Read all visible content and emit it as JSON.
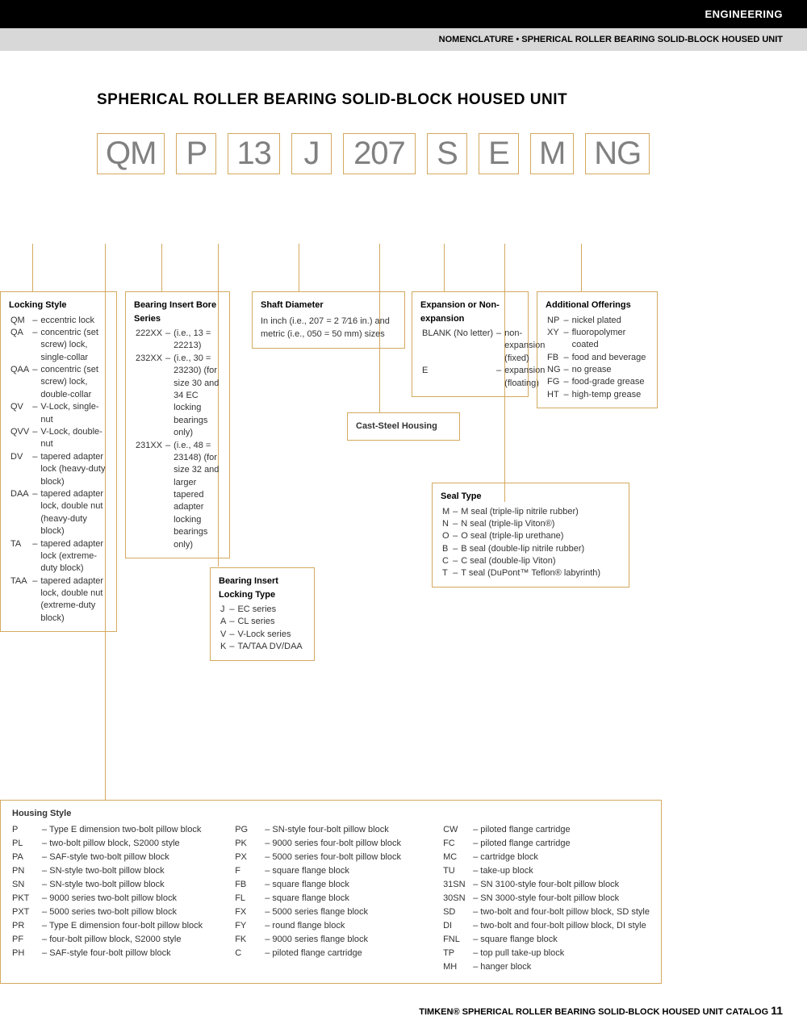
{
  "header": {
    "category": "ENGINEERING",
    "breadcrumb": "NOMENCLATURE • SPHERICAL ROLLER BEARING SOLID-BLOCK HOUSED UNIT"
  },
  "title": "SPHERICAL ROLLER BEARING SOLID-BLOCK HOUSED UNIT",
  "code_parts": [
    "QM",
    "P",
    "13",
    "J",
    "207",
    "S",
    "E",
    "M",
    "NG"
  ],
  "locking_style": {
    "title": "Locking Style",
    "rows": [
      [
        "QM",
        "eccentric lock"
      ],
      [
        "QA",
        "concentric (set screw) lock, single-collar"
      ],
      [
        "QAA",
        "concentric (set screw) lock, double-collar"
      ],
      [
        "QV",
        "V-Lock, single-nut"
      ],
      [
        "QVV",
        "V-Lock, double-nut"
      ],
      [
        "DV",
        "tapered adapter lock (heavy-duty block)"
      ],
      [
        "DAA",
        "tapered adapter lock, double nut (heavy-duty block)"
      ],
      [
        "TA",
        "tapered adapter lock (extreme-duty block)"
      ],
      [
        "TAA",
        "tapered adapter lock, double nut (extreme-duty block)"
      ]
    ]
  },
  "bore_series": {
    "title": "Bearing Insert Bore Series",
    "rows": [
      [
        "222XX",
        "(i.e., 13 = 22213)"
      ],
      [
        "232XX",
        "(i.e., 30 = 23230) (for size 30 and 34 EC locking bearings only)"
      ],
      [
        "231XX",
        "(i.e., 48 = 23148) (for size 32 and larger tapered adapter locking bearings only)"
      ]
    ]
  },
  "locking_type": {
    "title": "Bearing Insert Locking Type",
    "rows": [
      [
        "J",
        "EC series"
      ],
      [
        "A",
        "CL series"
      ],
      [
        "V",
        "V-Lock series"
      ],
      [
        "K",
        "TA/TAA DV/DAA"
      ]
    ]
  },
  "shaft": {
    "title": "Shaft Diameter",
    "text": "In inch (i.e., 207 = 2 7⁄16 in.) and metric (i.e., 050 = 50 mm) sizes"
  },
  "cast_steel": "Cast-Steel Housing",
  "expansion": {
    "title": "Expansion or Non-expansion",
    "rows": [
      [
        "BLANK (No letter)",
        "non-expansion (fixed)"
      ],
      [
        "E",
        "expansion (floating)"
      ]
    ]
  },
  "seal_type": {
    "title": "Seal Type",
    "rows": [
      [
        "M",
        "M seal (triple-lip nitrile rubber)"
      ],
      [
        "N",
        "N seal (triple-lip Viton®)"
      ],
      [
        "O",
        "O seal (triple-lip urethane)"
      ],
      [
        "B",
        "B seal (double-lip nitrile rubber)"
      ],
      [
        "C",
        "C seal (double-lip Viton)"
      ],
      [
        "T",
        "T seal (DuPont™ Teflon® labyrinth)"
      ]
    ]
  },
  "additional": {
    "title": "Additional Offerings",
    "rows": [
      [
        "NP",
        "nickel plated"
      ],
      [
        "XY",
        "fluoropolymer coated"
      ],
      [
        "FB",
        "food and beverage"
      ],
      [
        "NG",
        "no grease"
      ],
      [
        "FG",
        "food-grade grease"
      ],
      [
        "HT",
        "high-temp grease"
      ]
    ]
  },
  "housing": {
    "title": "Housing Style",
    "col1": [
      [
        "P",
        "Type E dimension two-bolt pillow block"
      ],
      [
        "PL",
        "two-bolt pillow block, S2000 style"
      ],
      [
        "PA",
        "SAF-style two-bolt pillow block"
      ],
      [
        "PN",
        "SN-style two-bolt pillow block"
      ],
      [
        "SN",
        "SN-style two-bolt pillow block"
      ],
      [
        "PKT",
        "9000 series two-bolt pillow block"
      ],
      [
        "PXT",
        "5000 series two-bolt pillow block"
      ],
      [
        "PR",
        "Type E dimension four-bolt pillow block"
      ],
      [
        "PF",
        "four-bolt pillow block, S2000 style"
      ],
      [
        "PH",
        "SAF-style four-bolt pillow block"
      ]
    ],
    "col2": [
      [
        "PG",
        "SN-style four-bolt pillow block"
      ],
      [
        "PK",
        "9000 series four-bolt pillow block"
      ],
      [
        "PX",
        "5000 series four-bolt pillow block"
      ],
      [
        "F",
        "square flange block"
      ],
      [
        "FB",
        "square flange block"
      ],
      [
        "FL",
        "square flange block"
      ],
      [
        "FX",
        "5000 series flange block"
      ],
      [
        "FY",
        "round flange block"
      ],
      [
        "FK",
        "9000 series flange block"
      ],
      [
        "C",
        "piloted flange cartridge"
      ]
    ],
    "col3": [
      [
        "CW",
        "piloted flange cartridge"
      ],
      [
        "FC",
        "piloted flange cartridge"
      ],
      [
        "MC",
        "cartridge block"
      ],
      [
        "TU",
        "take-up block"
      ],
      [
        "31SN",
        "SN 3100-style four-bolt pillow block"
      ],
      [
        "30SN",
        "SN 3000-style four-bolt pillow block"
      ],
      [
        "SD",
        "two-bolt and four-bolt pillow block, SD style"
      ],
      [
        "DI",
        "two-bolt and four-bolt pillow block, DI style"
      ],
      [
        "FNL",
        "square flange block"
      ],
      [
        "TP",
        "top pull take-up block"
      ],
      [
        "MH",
        "hanger block"
      ]
    ]
  },
  "footer": {
    "brand": "TIMKEN®",
    "text": "SPHERICAL ROLLER BEARING SOLID-BLOCK HOUSED UNIT CATALOG",
    "page": "11"
  },
  "colors": {
    "border": "#d4a960",
    "code_text": "#808080",
    "black": "#000000",
    "gray_bar": "#d8d8d8"
  }
}
